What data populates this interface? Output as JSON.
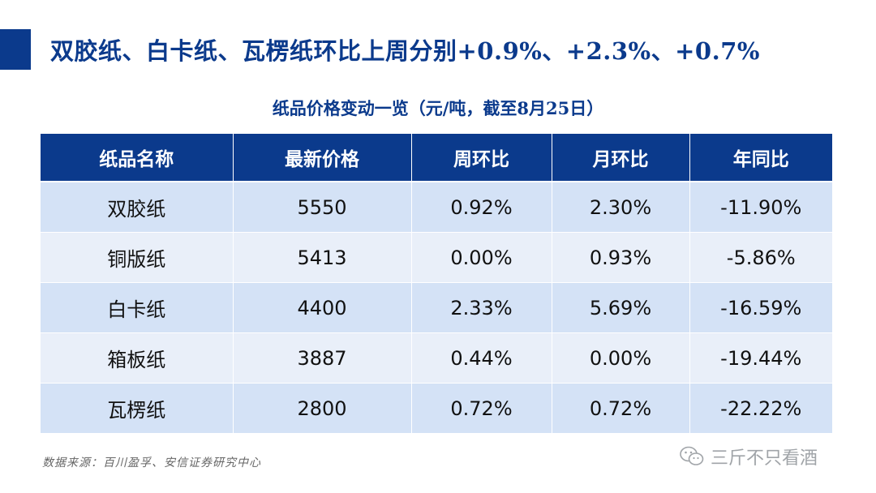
{
  "header": {
    "headline": "双胶纸、白卡纸、瓦楞纸环比上周分别+0.9%、+2.3%、+0.7%"
  },
  "table": {
    "title": "纸品价格变动一览（元/吨，截至8月25日）",
    "columns": [
      "纸品名称",
      "最新价格",
      "周环比",
      "月环比",
      "年同比"
    ],
    "rows": [
      [
        "双胶纸",
        "5550",
        "0.92%",
        "2.30%",
        "-11.90%"
      ],
      [
        "铜版纸",
        "5413",
        "0.00%",
        "0.93%",
        "-5.86%"
      ],
      [
        "白卡纸",
        "4400",
        "2.33%",
        "5.69%",
        "-16.59%"
      ],
      [
        "箱板纸",
        "3887",
        "0.44%",
        "0.00%",
        "-19.44%"
      ],
      [
        "瓦楞纸",
        "2800",
        "0.72%",
        "0.72%",
        "-22.22%"
      ]
    ]
  },
  "footer": {
    "source": "数据来源：百川盈孚、安信证券研究中心",
    "watermark_text": "三斤不只看酒",
    "watermark_icon": "wechat-icon"
  },
  "colors": {
    "brand_blue": "#0b3a8c",
    "row_light": "#e9eff9",
    "row_mid": "#d4e2f6"
  }
}
